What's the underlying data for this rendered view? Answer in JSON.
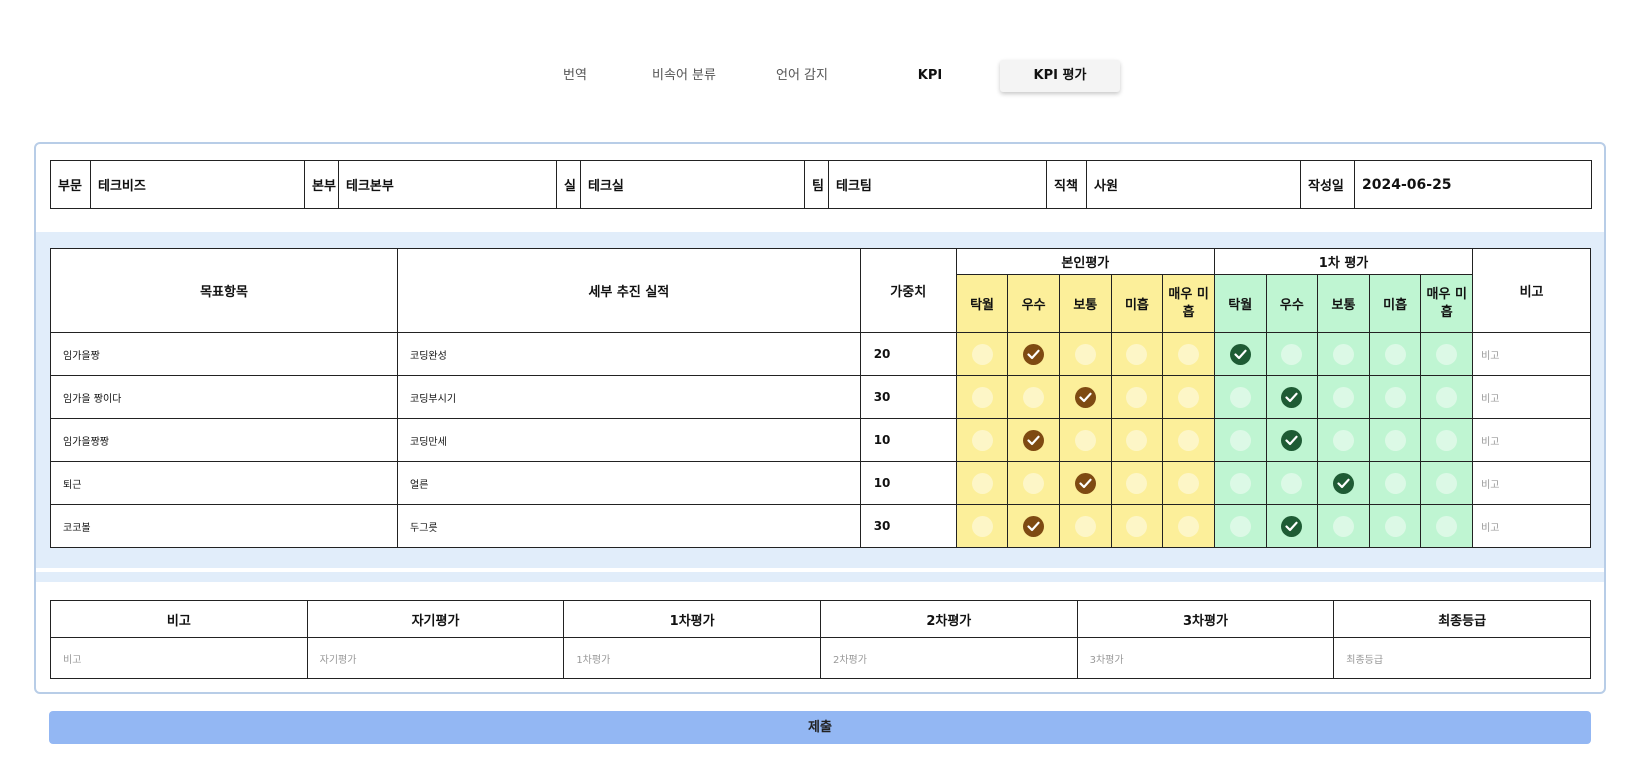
{
  "tabs": [
    {
      "label": "번역"
    },
    {
      "label": "비속어 분류"
    },
    {
      "label": "언어 감지"
    },
    {
      "label": "KPI"
    },
    {
      "label": "KPI 평가"
    }
  ],
  "info": {
    "division_label": "부문",
    "division_value": "테크비즈",
    "hq_label": "본부",
    "hq_value": "테크본부",
    "office_label": "실",
    "office_value": "테크실",
    "team_label": "팀",
    "team_value": "테크팀",
    "position_label": "직책",
    "position_value": "사원",
    "date_label": "작성일",
    "date_value": "2024-06-25"
  },
  "kpi": {
    "headers": {
      "goal": "목표항목",
      "detail": "세부 추진 실적",
      "weight": "가중치",
      "self_eval": "본인평가",
      "first_eval": "1차 평가",
      "note": "비고"
    },
    "grades": [
      "탁월",
      "우수",
      "보통",
      "미흡",
      "매우 미흡"
    ],
    "rows": [
      {
        "goal": "임가을짱",
        "detail": "코딩완성",
        "weight": "20",
        "self": 1,
        "first": 0,
        "note": "비고"
      },
      {
        "goal": "임가을 짱이다",
        "detail": "코딩부시기",
        "weight": "30",
        "self": 2,
        "first": 1,
        "note": "비고"
      },
      {
        "goal": "임가을짱짱",
        "detail": "코딩만세",
        "weight": "10",
        "self": 1,
        "first": 1,
        "note": "비고"
      },
      {
        "goal": "퇴근",
        "detail": "얼른",
        "weight": "10",
        "self": 2,
        "first": 2,
        "note": "비고"
      },
      {
        "goal": "코코볼",
        "detail": "두그릇",
        "weight": "30",
        "self": 1,
        "first": 1,
        "note": "비고"
      }
    ]
  },
  "summary": {
    "headers": [
      "비고",
      "자기평가",
      "1차평가",
      "2차평가",
      "3차평가",
      "최종등급"
    ],
    "placeholders": [
      "비고",
      "자기평가",
      "1차평가",
      "2차평가",
      "3차평가",
      "최종등급"
    ]
  },
  "submit_label": "제출",
  "colors": {
    "self_bg": "#fcef9a",
    "first_bg": "#bff5d2",
    "self_checked": "#7e4a12",
    "first_checked": "#1e5b34",
    "submit_bg": "#93b7f3",
    "panel_border": "#b8cde7"
  }
}
